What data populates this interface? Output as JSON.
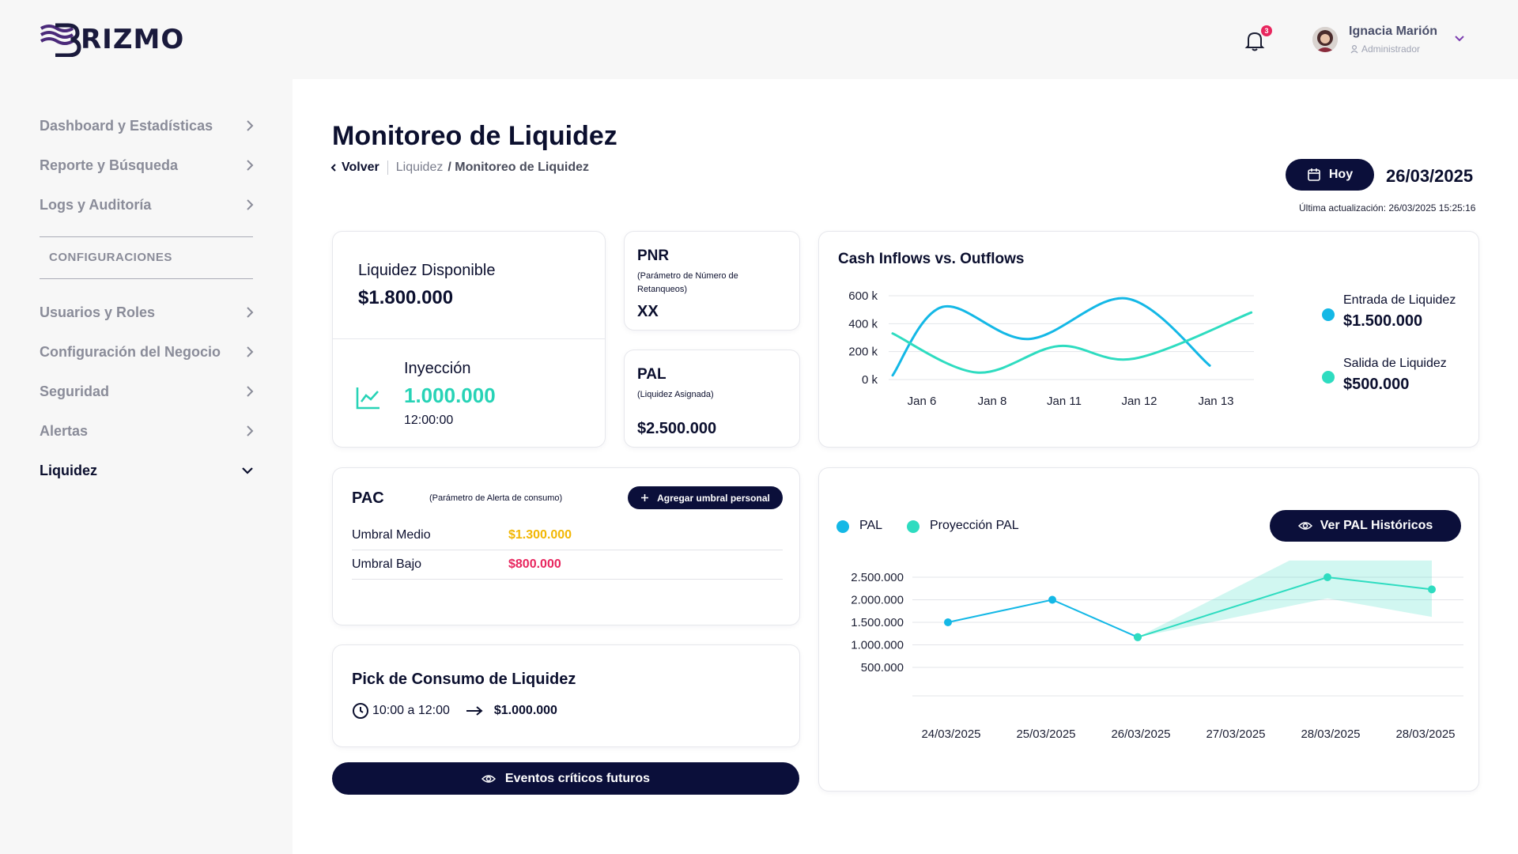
{
  "brand": {
    "logo_text": "RIZMO"
  },
  "header": {
    "notification_count": "3",
    "user_name": "Ignacia Marión",
    "user_role": "Administrador"
  },
  "sidebar": {
    "items": [
      {
        "label": "Dashboard y Estadísticas"
      },
      {
        "label": "Reporte y Búsqueda"
      },
      {
        "label": "Logs y Auditoría"
      },
      {
        "label": "Usuarios y Roles"
      },
      {
        "label": "Configuración del Negocio"
      },
      {
        "label": "Seguridad"
      },
      {
        "label": "Alertas"
      },
      {
        "label": "Liquidez"
      }
    ],
    "section_label": "CONFIGURACIONES"
  },
  "page": {
    "title": "Monitoreo de Liquidez",
    "breadcrumb": {
      "back": "Volver",
      "parent": "Liquidez",
      "current": "/ Monitoreo de Liquidez"
    },
    "today_button": "Hoy",
    "date": "26/03/2025",
    "last_update": "Última actualización: 26/03/2025 15:25:16"
  },
  "liquidez_card": {
    "label": "Liquidez Disponible",
    "value": "$1.800.000",
    "injection_label": "Inyección",
    "injection_value": "1.000.000",
    "injection_time": "12:00:00"
  },
  "pnr_card": {
    "title": "PNR",
    "subtitle": "(Parámetro de Número de Retanqueos)",
    "value": "XX"
  },
  "pal_card": {
    "title": "PAL",
    "subtitle": "(Liquidez Asignada)",
    "value": "$2.500.000"
  },
  "cash_chart": {
    "title": "Cash Inflows vs. Outflows",
    "legend": [
      {
        "name": "Entrada de Liquidez",
        "value": "$1.500.000",
        "color": "#14b8e6"
      },
      {
        "name": "Salida de Liquidez",
        "value": "$500.000",
        "color": "#2edcc0"
      }
    ]
  },
  "pac_card": {
    "title": "PAC",
    "subtitle": "(Parámetro de Alerta de consumo)",
    "add_button": "Agregar umbral personal",
    "rows": [
      {
        "label": "Umbral Medio",
        "value": "$1.300.000",
        "color": "#f2b705"
      },
      {
        "label": "Umbral Bajo",
        "value": "$800.000",
        "color": "#e8265e"
      }
    ]
  },
  "pick_card": {
    "title": "Pick de Consumo de Liquidez",
    "time_range": "10:00 a 12:00",
    "value": "$1.000.000"
  },
  "events_button": "Eventos críticos futuros",
  "pal_chart": {
    "legend": [
      {
        "name": "PAL",
        "color": "#14b8e6"
      },
      {
        "name": "Proyección PAL",
        "color": "#2edcc0"
      }
    ],
    "history_button": "Ver PAL Históricos"
  },
  "chart_data": [
    {
      "type": "line",
      "title": "Cash Inflows vs. Outflows",
      "x": [
        "Jan 6",
        "Jan 8",
        "Jan 11",
        "Jan 12",
        "Jan 13"
      ],
      "y_ticks": [
        "0 k",
        "200 k",
        "400 k",
        "600 k"
      ],
      "ylim": [
        0,
        600
      ],
      "series": [
        {
          "name": "Entrada de Liquidez",
          "color": "#14b8e6",
          "points": [
            [
              0.0,
              30
            ],
            [
              0.66,
              520
            ],
            [
              1.8,
              290
            ],
            [
              3.1,
              580
            ],
            [
              4.2,
              100
            ]
          ]
        },
        {
          "name": "Salida de Liquidez",
          "color": "#2edcc0",
          "points": [
            [
              0.0,
              330
            ],
            [
              1.12,
              50
            ],
            [
              2.2,
              240
            ],
            [
              3.2,
              150
            ],
            [
              4.75,
              480
            ]
          ]
        }
      ]
    },
    {
      "type": "line",
      "x": [
        "24/03/2025",
        "25/03/2025",
        "26/03/2025",
        "27/03/2025",
        "28/03/2025",
        "28/03/2025"
      ],
      "y_ticks": [
        "500.000",
        "1.000.000",
        "1.500.000",
        "2.000.000",
        "2.500.000"
      ],
      "ylim": [
        500000,
        2500000
      ],
      "series": [
        {
          "name": "PAL",
          "color": "#14b8e6",
          "points": [
            [
              0,
              1500000
            ],
            [
              1.1,
              2000000
            ],
            [
              2.0,
              1170000
            ]
          ]
        },
        {
          "name": "Proyección PAL",
          "color": "#2edcc0",
          "points": [
            [
              2.0,
              1170000
            ],
            [
              4.0,
              2500000
            ],
            [
              5.1,
              2230000
            ]
          ],
          "band_upper": [
            [
              2.0,
              1170000
            ],
            [
              3.6,
              2870000
            ],
            [
              5.1,
              2870000
            ]
          ],
          "band_lower": [
            [
              2.0,
              1170000
            ],
            [
              4.0,
              2030000
            ],
            [
              5.1,
              1620000
            ]
          ]
        }
      ]
    }
  ]
}
